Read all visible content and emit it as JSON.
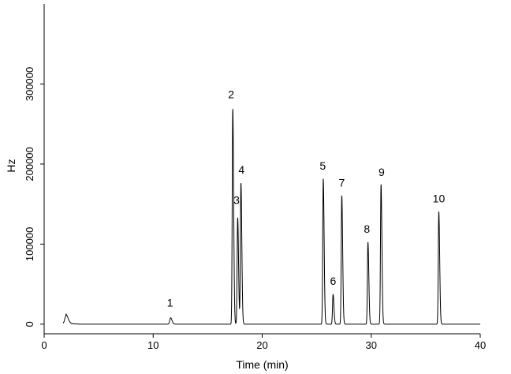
{
  "chart_data": {
    "type": "line",
    "xlabel": "Time (min)",
    "ylabel": "Hz",
    "xlim": [
      0,
      40
    ],
    "ylim": [
      -12000,
      400000
    ],
    "x_ticks": [
      0,
      10,
      20,
      30,
      40
    ],
    "y_ticks": [
      0,
      100000,
      200000,
      300000
    ],
    "x_tick_labels": [
      "0",
      "10",
      "20",
      "30",
      "40"
    ],
    "y_tick_labels": [
      "0",
      "100000",
      "200000",
      "300000"
    ],
    "grid": false,
    "series": [
      {
        "peaks": [
          {
            "time": 2.0,
            "height": 10000,
            "width": 0.12
          },
          {
            "time": 11.6,
            "height": 8000,
            "width": 0.08
          },
          {
            "time": 17.3,
            "height": 268000,
            "width": 0.05
          },
          {
            "time": 17.75,
            "height": 133000,
            "width": 0.05
          },
          {
            "time": 18.05,
            "height": 176000,
            "width": 0.05
          },
          {
            "time": 25.6,
            "height": 181000,
            "width": 0.05
          },
          {
            "time": 26.5,
            "height": 37000,
            "width": 0.05
          },
          {
            "time": 27.3,
            "height": 160000,
            "width": 0.05
          },
          {
            "time": 29.7,
            "height": 102000,
            "width": 0.05
          },
          {
            "time": 30.9,
            "height": 174000,
            "width": 0.05
          },
          {
            "time": 36.2,
            "height": 140000,
            "width": 0.05
          }
        ]
      }
    ],
    "annotations": [
      {
        "text": "1",
        "time": 11.55,
        "at": 22000
      },
      {
        "text": "2",
        "time": 17.15,
        "at": 282000
      },
      {
        "text": "3",
        "time": 17.65,
        "at": 150000
      },
      {
        "text": "4",
        "time": 18.1,
        "at": 188000
      },
      {
        "text": "5",
        "time": 25.55,
        "at": 193000
      },
      {
        "text": "6",
        "time": 26.5,
        "at": 49000
      },
      {
        "text": "7",
        "time": 27.3,
        "at": 172000
      },
      {
        "text": "8",
        "time": 29.6,
        "at": 114000
      },
      {
        "text": "9",
        "time": 30.95,
        "at": 185000
      },
      {
        "text": "10",
        "time": 36.2,
        "at": 152000
      }
    ]
  }
}
